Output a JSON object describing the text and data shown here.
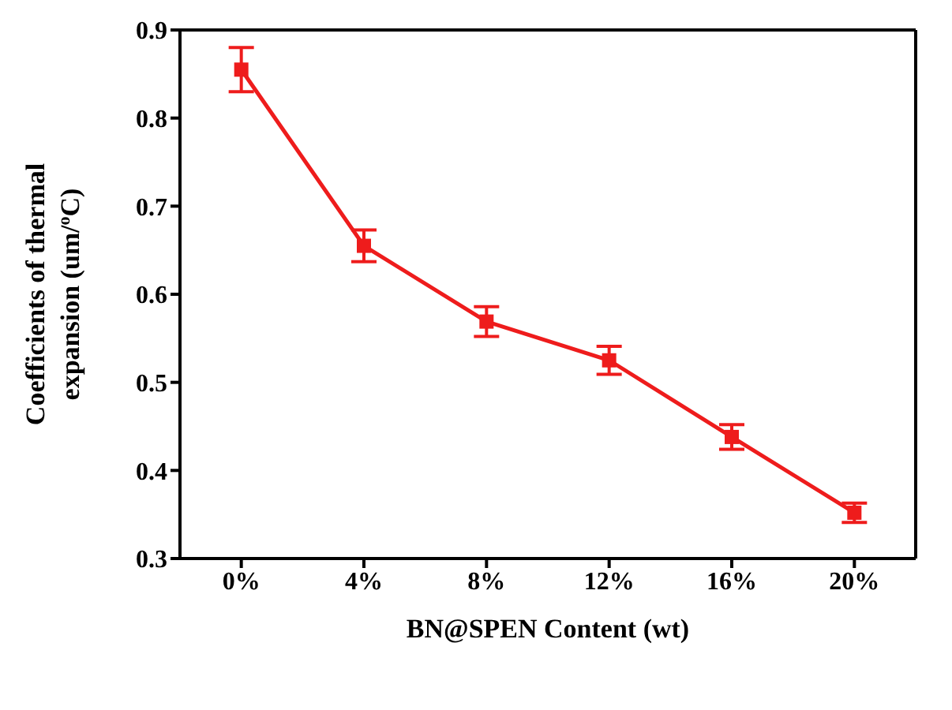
{
  "chart_data": {
    "type": "line",
    "xlabel": "BN@SPEN Content (wt)",
    "ylabel": "Coefficients of thermal expansion (um/$^{o}$C)",
    "categories": [
      "0%",
      "4%",
      "8%",
      "12%",
      "16%",
      "20%"
    ],
    "series": [
      {
        "color": "#ee1c1c",
        "values": [
          0.855,
          0.655,
          0.569,
          0.525,
          0.438,
          0.352
        ],
        "errors": [
          0.025,
          0.018,
          0.017,
          0.016,
          0.014,
          0.011
        ]
      }
    ],
    "ylim": [
      0.3,
      0.9
    ],
    "yticks": [
      0.3,
      0.4,
      0.5,
      0.6,
      0.7,
      0.8,
      0.9
    ],
    "grid": false,
    "legend": false,
    "marker": "square",
    "line_style": "solid"
  }
}
